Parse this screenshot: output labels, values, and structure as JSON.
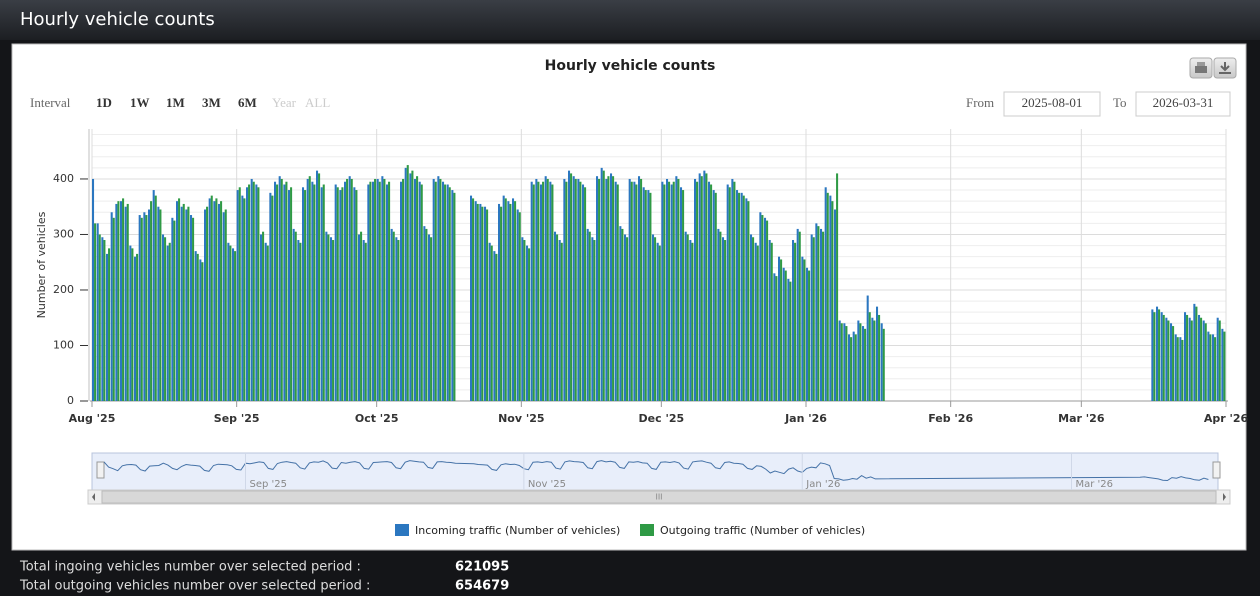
{
  "header": {
    "title": "Hourly vehicle counts"
  },
  "toolbar": {
    "interval_label": "Interval",
    "intervals": [
      {
        "label": "1D",
        "enabled": true
      },
      {
        "label": "1W",
        "enabled": true
      },
      {
        "label": "1M",
        "enabled": true
      },
      {
        "label": "3M",
        "enabled": true
      },
      {
        "label": "6M",
        "enabled": true
      },
      {
        "label": "Year",
        "enabled": false
      },
      {
        "label": "ALL",
        "enabled": false
      }
    ],
    "from_label": "From",
    "from": "2025-08-01",
    "to_label": "To",
    "to": "2026-03-31"
  },
  "chart_data": {
    "type": "bar",
    "title": "Hourly vehicle counts",
    "ylabel": "Number of vehicles",
    "x": [
      "2025-08-01",
      "2025-08-02",
      "2025-08-03",
      "2025-08-04",
      "2025-08-05",
      "2025-08-06",
      "2025-08-07",
      "2025-08-08",
      "2025-08-09",
      "2025-08-10",
      "2025-08-11",
      "2025-08-12",
      "2025-08-13",
      "2025-08-14",
      "2025-08-15",
      "2025-08-16",
      "2025-08-17",
      "2025-08-18",
      "2025-08-19",
      "2025-08-20",
      "2025-08-21",
      "2025-08-22",
      "2025-08-23",
      "2025-08-24",
      "2025-08-25",
      "2025-08-26",
      "2025-08-27",
      "2025-08-28",
      "2025-08-29",
      "2025-08-30",
      "2025-08-31",
      "2025-09-01",
      "2025-09-02",
      "2025-09-03",
      "2025-09-04",
      "2025-09-05",
      "2025-09-06",
      "2025-09-07",
      "2025-09-08",
      "2025-09-09",
      "2025-09-10",
      "2025-09-11",
      "2025-09-12",
      "2025-09-13",
      "2025-09-14",
      "2025-09-15",
      "2025-09-16",
      "2025-09-17",
      "2025-09-18",
      "2025-09-19",
      "2025-09-20",
      "2025-09-21",
      "2025-09-22",
      "2025-09-23",
      "2025-09-24",
      "2025-09-25",
      "2025-09-26",
      "2025-09-27",
      "2025-09-28",
      "2025-09-29",
      "2025-09-30",
      "2025-10-01",
      "2025-10-02",
      "2025-10-03",
      "2025-10-04",
      "2025-10-05",
      "2025-10-06",
      "2025-10-07",
      "2025-10-08",
      "2025-10-09",
      "2025-10-10",
      "2025-10-11",
      "2025-10-12",
      "2025-10-13",
      "2025-10-14",
      "2025-10-15",
      "2025-10-16",
      "2025-10-17",
      "2025-10-21",
      "2025-10-22",
      "2025-10-23",
      "2025-10-24",
      "2025-10-25",
      "2025-10-26",
      "2025-10-27",
      "2025-10-28",
      "2025-10-29",
      "2025-10-30",
      "2025-10-31",
      "2025-11-01",
      "2025-11-02",
      "2025-11-03",
      "2025-11-04",
      "2025-11-05",
      "2025-11-06",
      "2025-11-07",
      "2025-11-08",
      "2025-11-09",
      "2025-11-10",
      "2025-11-11",
      "2025-11-12",
      "2025-11-13",
      "2025-11-14",
      "2025-11-15",
      "2025-11-16",
      "2025-11-17",
      "2025-11-18",
      "2025-11-19",
      "2025-11-20",
      "2025-11-21",
      "2025-11-22",
      "2025-11-23",
      "2025-11-24",
      "2025-11-25",
      "2025-11-26",
      "2025-11-27",
      "2025-11-28",
      "2025-11-29",
      "2025-11-30",
      "2025-12-01",
      "2025-12-02",
      "2025-12-03",
      "2025-12-04",
      "2025-12-05",
      "2025-12-06",
      "2025-12-07",
      "2025-12-08",
      "2025-12-09",
      "2025-12-10",
      "2025-12-11",
      "2025-12-12",
      "2025-12-13",
      "2025-12-14",
      "2025-12-15",
      "2025-12-16",
      "2025-12-17",
      "2025-12-18",
      "2025-12-19",
      "2025-12-20",
      "2025-12-21",
      "2025-12-22",
      "2025-12-23",
      "2025-12-24",
      "2025-12-25",
      "2025-12-26",
      "2025-12-27",
      "2025-12-28",
      "2025-12-29",
      "2025-12-30",
      "2025-12-31",
      "2026-01-01",
      "2026-01-02",
      "2026-01-03",
      "2026-01-04",
      "2026-01-05",
      "2026-01-06",
      "2026-01-07",
      "2026-01-08",
      "2026-01-09",
      "2026-01-10",
      "2026-01-11",
      "2026-01-12",
      "2026-01-13",
      "2026-01-14",
      "2026-01-15",
      "2026-01-16",
      "2026-01-17",
      "2026-03-16",
      "2026-03-17",
      "2026-03-18",
      "2026-03-19",
      "2026-03-20",
      "2026-03-21",
      "2026-03-22",
      "2026-03-23",
      "2026-03-24",
      "2026-03-25",
      "2026-03-26",
      "2026-03-27",
      "2026-03-28",
      "2026-03-29",
      "2026-03-30",
      "2026-03-31"
    ],
    "series": [
      {
        "name": "Incoming traffic (Number of vehicles)",
        "color": "#2b77c0",
        "values": [
          400,
          320,
          295,
          265,
          340,
          355,
          360,
          350,
          280,
          260,
          335,
          340,
          345,
          380,
          350,
          300,
          280,
          330,
          360,
          350,
          345,
          335,
          270,
          255,
          345,
          365,
          360,
          355,
          340,
          285,
          275,
          380,
          370,
          385,
          400,
          390,
          300,
          285,
          375,
          395,
          405,
          390,
          380,
          310,
          290,
          385,
          400,
          395,
          415,
          385,
          305,
          295,
          390,
          380,
          395,
          405,
          385,
          300,
          290,
          390,
          395,
          400,
          405,
          390,
          310,
          295,
          395,
          420,
          410,
          400,
          395,
          315,
          300,
          400,
          405,
          395,
          390,
          380,
          370,
          360,
          355,
          350,
          285,
          270,
          355,
          370,
          360,
          365,
          345,
          295,
          280,
          395,
          400,
          390,
          405,
          395,
          305,
          290,
          400,
          415,
          405,
          400,
          390,
          310,
          295,
          405,
          420,
          400,
          410,
          395,
          315,
          300,
          400,
          395,
          405,
          385,
          380,
          300,
          285,
          395,
          400,
          390,
          405,
          385,
          305,
          290,
          400,
          410,
          415,
          395,
          380,
          310,
          295,
          390,
          400,
          380,
          375,
          365,
          300,
          285,
          340,
          330,
          290,
          230,
          260,
          240,
          220,
          290,
          310,
          260,
          240,
          300,
          320,
          310,
          385,
          370,
          345,
          145,
          140,
          120,
          125,
          145,
          135,
          190,
          150,
          170,
          140,
          165,
          170,
          160,
          150,
          140,
          120,
          115,
          160,
          150,
          175,
          155,
          145,
          125,
          120,
          150,
          130
        ]
      },
      {
        "name": "Outgoing traffic (Number of vehicles)",
        "color": "#2f9a45",
        "values": [
          320,
          300,
          290,
          275,
          330,
          360,
          365,
          355,
          275,
          265,
          330,
          335,
          360,
          370,
          345,
          295,
          285,
          325,
          365,
          355,
          350,
          330,
          265,
          250,
          350,
          370,
          365,
          360,
          345,
          280,
          270,
          385,
          365,
          390,
          395,
          385,
          305,
          280,
          370,
          390,
          400,
          395,
          385,
          305,
          285,
          380,
          405,
          390,
          410,
          390,
          300,
          290,
          385,
          385,
          400,
          400,
          380,
          305,
          285,
          395,
          400,
          395,
          400,
          395,
          305,
          290,
          400,
          425,
          415,
          405,
          390,
          310,
          295,
          395,
          400,
          390,
          385,
          375,
          365,
          355,
          350,
          345,
          280,
          265,
          350,
          365,
          355,
          360,
          340,
          290,
          275,
          390,
          395,
          395,
          400,
          390,
          300,
          285,
          395,
          410,
          400,
          395,
          385,
          305,
          290,
          400,
          415,
          405,
          405,
          390,
          310,
          295,
          395,
          390,
          400,
          380,
          375,
          295,
          280,
          390,
          395,
          395,
          400,
          380,
          300,
          285,
          395,
          405,
          410,
          390,
          375,
          305,
          290,
          385,
          395,
          375,
          370,
          360,
          295,
          280,
          335,
          325,
          285,
          225,
          255,
          235,
          215,
          285,
          305,
          255,
          235,
          295,
          315,
          305,
          375,
          360,
          410,
          140,
          135,
          115,
          120,
          140,
          130,
          160,
          145,
          155,
          130,
          160,
          165,
          155,
          145,
          135,
          115,
          110,
          155,
          145,
          170,
          150,
          140,
          120,
          115,
          145,
          125
        ]
      }
    ],
    "xlim": [
      "2025-08-01",
      "2026-04-01"
    ],
    "xticks": [
      {
        "value": "2025-08-01",
        "label": "Aug '25"
      },
      {
        "value": "2025-09-01",
        "label": "Sep '25"
      },
      {
        "value": "2025-10-01",
        "label": "Oct '25"
      },
      {
        "value": "2025-11-01",
        "label": "Nov '25"
      },
      {
        "value": "2025-12-01",
        "label": "Dec '25"
      },
      {
        "value": "2026-01-01",
        "label": "Jan '26"
      },
      {
        "value": "2026-02-01",
        "label": "Feb '26"
      },
      {
        "value": "2026-03-01",
        "label": "Mar '26"
      },
      {
        "value": "2026-04-01",
        "label": "Apr '26"
      }
    ],
    "ylim": [
      0,
      490
    ],
    "yticks": [
      0,
      100,
      200,
      300,
      400
    ],
    "grid": true,
    "legend": "bottom",
    "navigator": {
      "xticks": [
        {
          "value": "2025-09-01",
          "label": "Sep '25"
        },
        {
          "value": "2025-11-01",
          "label": "Nov '25"
        },
        {
          "value": "2026-01-01",
          "label": "Jan '26"
        },
        {
          "value": "2026-03-01",
          "label": "Mar '26"
        }
      ],
      "scrollbar_label": "III"
    }
  },
  "totals": [
    {
      "label": "Total ingoing vehicles number over selected period :",
      "value": 621095
    },
    {
      "label": "Total outgoing vehicles number over selected period :",
      "value": 654679
    }
  ]
}
